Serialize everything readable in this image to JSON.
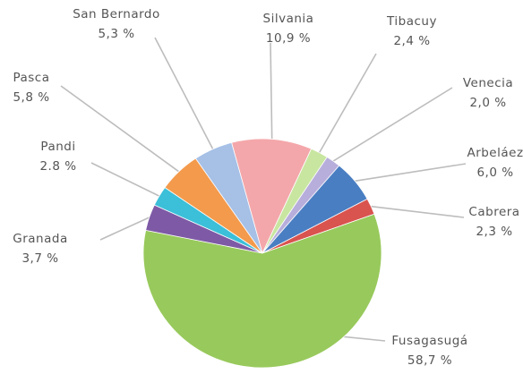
{
  "chart_data": {
    "type": "pie",
    "title": "",
    "legend": "none",
    "slices": [
      {
        "name": "Silvania",
        "value": 10.9,
        "label_name": "Silvania",
        "label_value": "10,9 %",
        "color": "#f4a7aa"
      },
      {
        "name": "Tibacuy",
        "value": 2.4,
        "label_name": "Tibacuy",
        "label_value": "2,4 %",
        "color": "#c8e6a0"
      },
      {
        "name": "Venecia",
        "value": 2.0,
        "label_name": "Venecia",
        "label_value": "2,0 %",
        "color": "#b8aedc"
      },
      {
        "name": "Arbeláez",
        "value": 6.0,
        "label_name": "Arbeláez",
        "label_value": "6,0 %",
        "color": "#4a7ec2"
      },
      {
        "name": "Cabrera",
        "value": 2.3,
        "label_name": "Cabrera",
        "label_value": "2,3 %",
        "color": "#d9534f"
      },
      {
        "name": "Fusagasugá",
        "value": 58.7,
        "label_name": "Fusagasugá",
        "label_value": "58,7 %",
        "color": "#98c95c"
      },
      {
        "name": "Granada",
        "value": 3.7,
        "label_name": "Granada",
        "label_value": "3,7 %",
        "color": "#7e5aa6"
      },
      {
        "name": "Pandi",
        "value": 2.8,
        "label_name": "Pandi",
        "label_value": "2.8 %",
        "color": "#3cbfd8"
      },
      {
        "name": "Pasca",
        "value": 5.8,
        "label_name": "Pasca",
        "label_value": "5,8 %",
        "color": "#f39a4c"
      },
      {
        "name": "San Bernardo",
        "value": 5.3,
        "label_name": "San Bernardo",
        "label_value": "5,3 %",
        "color": "#a6c0e6"
      }
    ]
  }
}
